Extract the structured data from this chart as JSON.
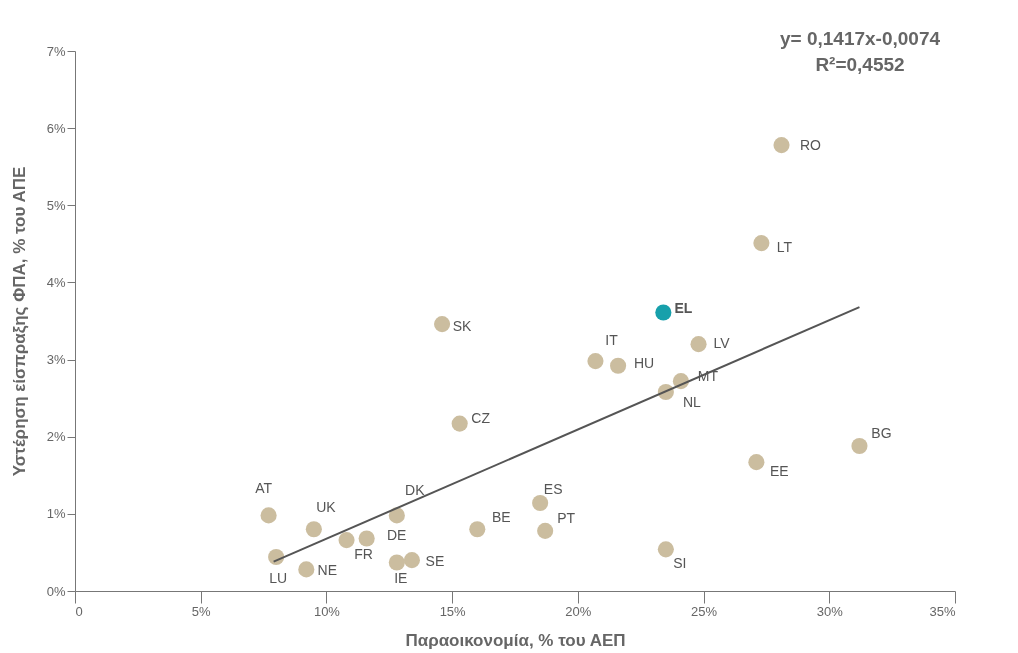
{
  "chart_data": {
    "type": "scatter",
    "xlabel": "Παραοικονομία, % του ΑΕΠ",
    "ylabel": "Υστέρηση είσπραξης ΦΠΑ, % του ΑΠΕ",
    "xlim": [
      0,
      35
    ],
    "ylim": [
      0,
      7
    ],
    "xticks": [
      0,
      {
        "value": 5,
        "label": "5%"
      },
      {
        "value": 10,
        "label": "10%"
      },
      {
        "value": 15,
        "label": "15%"
      },
      {
        "value": 20,
        "label": "20%"
      },
      {
        "value": 25,
        "label": "25%"
      },
      {
        "value": 30,
        "label": "30%"
      },
      {
        "value": 35,
        "label": "35%"
      }
    ],
    "yticks": [
      {
        "value": 0,
        "label": "0%"
      },
      {
        "value": 1,
        "label": "1%"
      },
      {
        "value": 2,
        "label": "2%"
      },
      {
        "value": 3,
        "label": "3%"
      },
      {
        "value": 4,
        "label": "4%"
      },
      {
        "value": 5,
        "label": "5%"
      },
      {
        "value": 6,
        "label": "6%"
      },
      {
        "value": 7,
        "label": "7%"
      }
    ],
    "grid": false,
    "legend": false,
    "series": [
      {
        "type": "scatter",
        "marker": "circle",
        "x": [
          7.7,
          9.5,
          8.0,
          9.2,
          10.8,
          11.6,
          12.8,
          12.8,
          13.4,
          16.0,
          18.5,
          18.7,
          23.5,
          14.6,
          15.3,
          20.7,
          21.6,
          23.4,
          24.8,
          24.1,
          23.5,
          27.3,
          28.1,
          27.1,
          31.2
        ],
        "values": [
          0.98,
          0.8,
          0.44,
          0.28,
          0.66,
          0.68,
          0.98,
          0.37,
          0.4,
          0.8,
          1.14,
          0.78,
          0.54,
          3.46,
          2.17,
          2.98,
          2.92,
          3.61,
          3.2,
          2.72,
          2.58,
          4.51,
          5.78,
          1.67,
          1.88
        ],
        "colors": [
          "#cbbd9f",
          "#cbbd9f",
          "#cbbd9f",
          "#cbbd9f",
          "#cbbd9f",
          "#cbbd9f",
          "#cbbd9f",
          "#cbbd9f",
          "#cbbd9f",
          "#cbbd9f",
          "#cbbd9f",
          "#cbbd9f",
          "#cbbd9f",
          "#cbbd9f",
          "#cbbd9f",
          "#cbbd9f",
          "#cbbd9f",
          "#17a0ab",
          "#cbbd9f",
          "#cbbd9f",
          "#cbbd9f",
          "#cbbd9f",
          "#cbbd9f",
          "#cbbd9f",
          "#cbbd9f"
        ]
      },
      {
        "type": "line",
        "marker": "none",
        "color": "#555555",
        "x": [
          7.9,
          31.2
        ],
        "values": [
          0.38,
          3.68
        ]
      }
    ],
    "annotations": [
      {
        "text": "AT",
        "x": 7.7,
        "y": 0.98
      },
      {
        "text": "UK",
        "x": 9.5,
        "y": 0.8
      },
      {
        "text": "LU",
        "x": 8.0,
        "y": 0.44
      },
      {
        "text": "NE",
        "x": 9.2,
        "y": 0.28
      },
      {
        "text": "FR",
        "x": 10.8,
        "y": 0.66
      },
      {
        "text": "DE",
        "x": 11.6,
        "y": 0.68
      },
      {
        "text": "DK",
        "x": 12.8,
        "y": 0.98
      },
      {
        "text": "IE",
        "x": 12.8,
        "y": 0.37
      },
      {
        "text": "SE",
        "x": 13.4,
        "y": 0.4
      },
      {
        "text": "BE",
        "x": 16.0,
        "y": 0.8
      },
      {
        "text": "ES",
        "x": 18.5,
        "y": 1.14
      },
      {
        "text": "PT",
        "x": 18.7,
        "y": 0.78
      },
      {
        "text": "SI",
        "x": 23.5,
        "y": 0.54
      },
      {
        "text": "SK",
        "x": 14.6,
        "y": 3.46
      },
      {
        "text": "CZ",
        "x": 15.3,
        "y": 2.17
      },
      {
        "text": "IT",
        "x": 20.7,
        "y": 2.98
      },
      {
        "text": "HU",
        "x": 21.6,
        "y": 2.92
      },
      {
        "text": "EL",
        "x": 23.4,
        "y": 3.61
      },
      {
        "text": "LV",
        "x": 24.8,
        "y": 3.2
      },
      {
        "text": "MT",
        "x": 24.1,
        "y": 2.72
      },
      {
        "text": "NL",
        "x": 23.5,
        "y": 2.58
      },
      {
        "text": "LT",
        "x": 27.3,
        "y": 4.51
      },
      {
        "text": "RO",
        "x": 28.1,
        "y": 5.78
      },
      {
        "text": "EE",
        "x": 27.1,
        "y": 1.67
      },
      {
        "text": "BG",
        "x": 31.2,
        "y": 1.88
      },
      "y= 0,1417x-0,0074",
      "R²=0,4552"
    ]
  }
}
